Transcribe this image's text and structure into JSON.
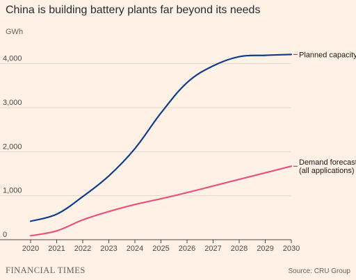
{
  "header": {
    "title": "China is building battery plants far beyond its needs",
    "unit": "GWh"
  },
  "footer": {
    "brand": "FINANCIAL TIMES",
    "source": "Source: CRU Group"
  },
  "colors": {
    "background": "#fff1e5",
    "gridline": "#e0d6ca",
    "planned": "#0f3d8c",
    "demand": "#e9527f"
  },
  "chart_data": {
    "type": "line",
    "title": "China is building battery plants far beyond its needs",
    "ylabel": "GWh",
    "xlabel": "",
    "x": [
      2020,
      2021,
      2022,
      2023,
      2024,
      2025,
      2026,
      2027,
      2028,
      2029,
      2030
    ],
    "xlim": [
      2020,
      2030
    ],
    "ylim": [
      0,
      4500
    ],
    "y_ticks": [
      0,
      1000,
      2000,
      3000,
      4000
    ],
    "y_tick_labels": [
      "0",
      "1,000",
      "2,000",
      "3,000",
      "4,000"
    ],
    "x_tick_labels": [
      "2020",
      "2021",
      "2022",
      "2023",
      "2024",
      "2025",
      "2026",
      "2027",
      "2028",
      "2029",
      "2030"
    ],
    "grid": true,
    "legend": "direct labels at right end of lines",
    "series": [
      {
        "name": "Planned capacity",
        "label_lines": [
          "Planned capacity"
        ],
        "color": "#0f3d8c",
        "values": [
          420,
          580,
          980,
          1450,
          2070,
          2880,
          3570,
          3950,
          4160,
          4190,
          4210
        ]
      },
      {
        "name": "Demand forecast (all applications)",
        "label_lines": [
          "Demand forecast",
          "(all applications)"
        ],
        "color": "#e9527f",
        "values": [
          90,
          200,
          450,
          640,
          800,
          930,
          1070,
          1220,
          1370,
          1520,
          1670
        ]
      }
    ]
  }
}
